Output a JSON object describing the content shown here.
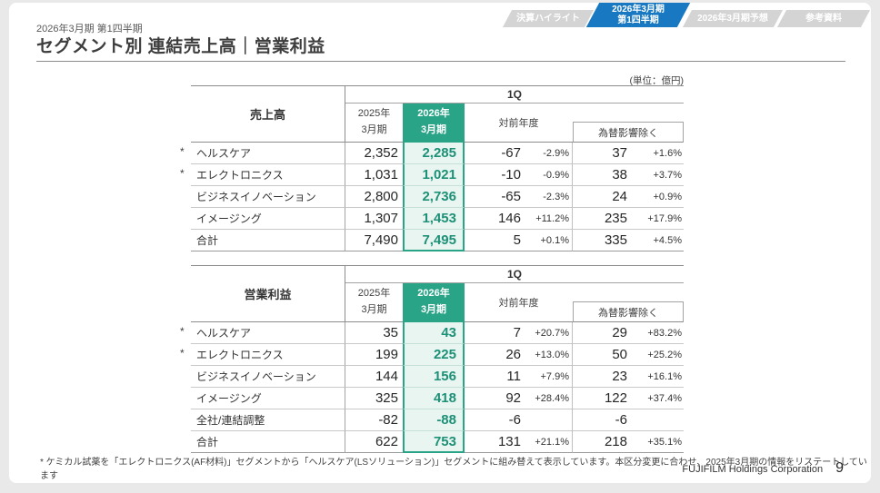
{
  "nav_tabs": [
    {
      "label_lines": [
        "決算ハイライト"
      ],
      "active": false
    },
    {
      "label_lines": [
        "2026年3月期",
        "第1四半期"
      ],
      "active": true
    },
    {
      "label_lines": [
        "2026年3月期予想"
      ],
      "active": false
    },
    {
      "label_lines": [
        "参考資料"
      ],
      "active": false
    }
  ],
  "header": {
    "subtitle": "2026年3月期 第1四半期",
    "title": "セグメント別 連結売上高｜営業利益"
  },
  "unit_label": "(単位：億円)",
  "asterisk_symbol": "*",
  "column_headers": {
    "group": "1Q",
    "prev_line1": "2025年",
    "prev_line2": "3月期",
    "curr_line1": "2026年",
    "curr_line2": "3月期",
    "yoy": "対前年度",
    "fx": "為替影響除く"
  },
  "tables": [
    {
      "title": "売上高",
      "rows": [
        {
          "asterisk": true,
          "label": "ヘルスケア",
          "prev": "2,352",
          "curr": "2,285",
          "yoy": "-67",
          "yoy_pct": "-2.9%",
          "fx": "37",
          "fx_pct": "+1.6%"
        },
        {
          "asterisk": true,
          "label": "エレクトロニクス",
          "prev": "1,031",
          "curr": "1,021",
          "yoy": "-10",
          "yoy_pct": "-0.9%",
          "fx": "38",
          "fx_pct": "+3.7%"
        },
        {
          "asterisk": false,
          "label": "ビジネスイノベーション",
          "prev": "2,800",
          "curr": "2,736",
          "yoy": "-65",
          "yoy_pct": "-2.3%",
          "fx": "24",
          "fx_pct": "+0.9%"
        },
        {
          "asterisk": false,
          "label": "イメージング",
          "prev": "1,307",
          "curr": "1,453",
          "yoy": "146",
          "yoy_pct": "+11.2%",
          "fx": "235",
          "fx_pct": "+17.9%"
        },
        {
          "asterisk": false,
          "label": "合計",
          "prev": "7,490",
          "curr": "7,495",
          "yoy": "5",
          "yoy_pct": "+0.1%",
          "fx": "335",
          "fx_pct": "+4.5%"
        }
      ]
    },
    {
      "title": "営業利益",
      "rows": [
        {
          "asterisk": true,
          "label": "ヘルスケア",
          "prev": "35",
          "curr": "43",
          "yoy": "7",
          "yoy_pct": "+20.7%",
          "fx": "29",
          "fx_pct": "+83.2%"
        },
        {
          "asterisk": true,
          "label": "エレクトロニクス",
          "prev": "199",
          "curr": "225",
          "yoy": "26",
          "yoy_pct": "+13.0%",
          "fx": "50",
          "fx_pct": "+25.2%"
        },
        {
          "asterisk": false,
          "label": "ビジネスイノベーション",
          "prev": "144",
          "curr": "156",
          "yoy": "11",
          "yoy_pct": "+7.9%",
          "fx": "23",
          "fx_pct": "+16.1%"
        },
        {
          "asterisk": false,
          "label": "イメージング",
          "prev": "325",
          "curr": "418",
          "yoy": "92",
          "yoy_pct": "+28.4%",
          "fx": "122",
          "fx_pct": "+37.4%"
        },
        {
          "asterisk": false,
          "label": "全社/連結調整",
          "prev": "-82",
          "curr": "-88",
          "yoy": "-6",
          "yoy_pct": "",
          "fx": "-6",
          "fx_pct": ""
        },
        {
          "asterisk": false,
          "label": "合計",
          "prev": "622",
          "curr": "753",
          "yoy": "131",
          "yoy_pct": "+21.1%",
          "fx": "218",
          "fx_pct": "+35.1%"
        }
      ]
    }
  ],
  "footnote": "* ケミカル試薬を「エレクトロニクス(AF材料)」セグメントから「ヘルスケア(LSソリューション)」セグメントに組み替えて表示しています。本区分変更に合わせ、2025年3月期の情報をリステートしています",
  "footer": {
    "company": "FUJIFILM Holdings Corporation",
    "page": "9"
  },
  "colors": {
    "accent_green": "#2aa487",
    "accent_green_light": "#e9f5f0",
    "accent_green_text": "#1d9177",
    "active_tab_blue": "#1879c2",
    "inactive_tab_gray": "#d4d4d4"
  }
}
